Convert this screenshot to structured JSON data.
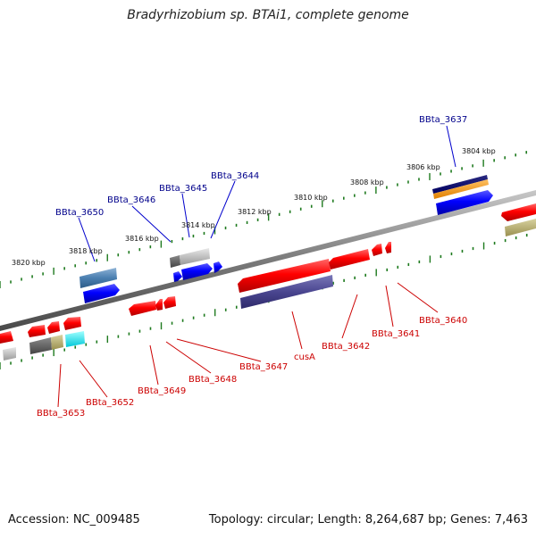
{
  "title": "Bradyrhizobium sp. BTAi1, complete genome",
  "footer": {
    "accession": "Accession: NC_009485",
    "summary": "Topology: circular; Length: 8,264,687 bp; Genes: 7,463"
  },
  "scale_labels": [
    "3804 kbp",
    "3806 kbp",
    "3808 kbp",
    "3810 kbp",
    "3812 kbp",
    "3814 kbp",
    "3816 kbp",
    "3818 kbp",
    "3820 kbp"
  ],
  "forward_genes": [
    "BBta_3637",
    "BBta_3644",
    "BBta_3645",
    "BBta_3646",
    "BBta_3650"
  ],
  "reverse_genes": [
    "BBta_3640",
    "BBta_3641",
    "BBta_3642",
    "cusA",
    "BBta_3647",
    "BBta_3648",
    "BBta_3649",
    "BBta_3652",
    "BBta_3653"
  ],
  "colors": {
    "forward_label": "#00008b",
    "reverse_label": "#cc0000",
    "tick": "#1e7a1e",
    "backbone": "#7a7a7a",
    "cds_forward": "#0000ff",
    "cds_reverse": "#ff0000"
  }
}
